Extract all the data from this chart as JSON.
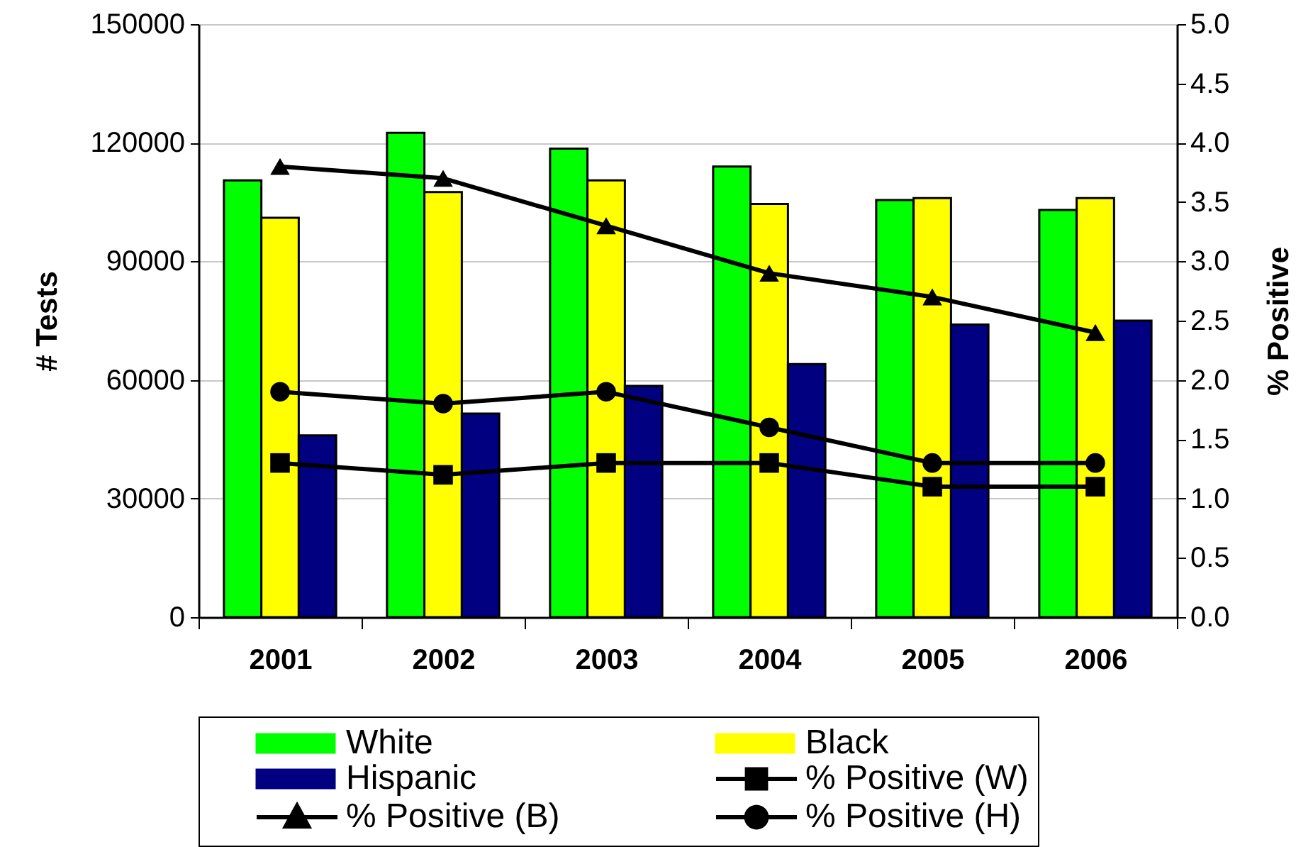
{
  "chart_data": {
    "type": "bar",
    "categories": [
      "2001",
      "2002",
      "2003",
      "2004",
      "2005",
      "2006"
    ],
    "ylabel": "# Tests",
    "y2label": "% Positive",
    "ylim": [
      0,
      150000
    ],
    "yticks": [
      0,
      30000,
      60000,
      90000,
      120000,
      150000
    ],
    "y2lim": [
      0,
      5
    ],
    "y2ticks": [
      {
        "value": 0,
        "label": "0.0"
      },
      {
        "value": 0.5,
        "label": "0.5"
      },
      {
        "value": 1,
        "label": "1.0"
      },
      {
        "value": 1.5,
        "label": "1.5"
      },
      {
        "value": 2,
        "label": "2.0"
      },
      {
        "value": 2.5,
        "label": "2.5"
      },
      {
        "value": 3,
        "label": "3.0"
      },
      {
        "value": 3.5,
        "label": "3.5"
      },
      {
        "value": 4,
        "label": "4.0"
      },
      {
        "value": 4.5,
        "label": "4.5"
      },
      {
        "value": 5,
        "label": "5.0"
      }
    ],
    "grid": "y",
    "legend": "bottom",
    "series": [
      {
        "name": "White",
        "color": "#00ff00",
        "values": [
          110500,
          122500,
          118500,
          114000,
          105500,
          103000
        ]
      },
      {
        "name": "Black",
        "color": "#ffff00",
        "values": [
          101000,
          107500,
          110500,
          104500,
          106000,
          106000
        ]
      },
      {
        "name": "Hispanic",
        "color": "#000080",
        "values": [
          46000,
          51500,
          58500,
          64000,
          74000,
          75000
        ]
      },
      {
        "name": "% Positive (W)",
        "type": "line",
        "axis": "y2",
        "marker": "square",
        "color": "#000000",
        "values": [
          1.3,
          1.2,
          1.3,
          1.3,
          1.1,
          1.1
        ]
      },
      {
        "name": "% Positive (B)",
        "type": "line",
        "axis": "y2",
        "marker": "triangle",
        "color": "#000000",
        "values": [
          3.8,
          3.7,
          3.3,
          2.9,
          2.7,
          2.4
        ]
      },
      {
        "name": "% Positive (H)",
        "type": "line",
        "axis": "y2",
        "marker": "circle",
        "color": "#000000",
        "values": [
          1.9,
          1.8,
          1.9,
          1.6,
          1.3,
          1.3
        ]
      }
    ]
  }
}
